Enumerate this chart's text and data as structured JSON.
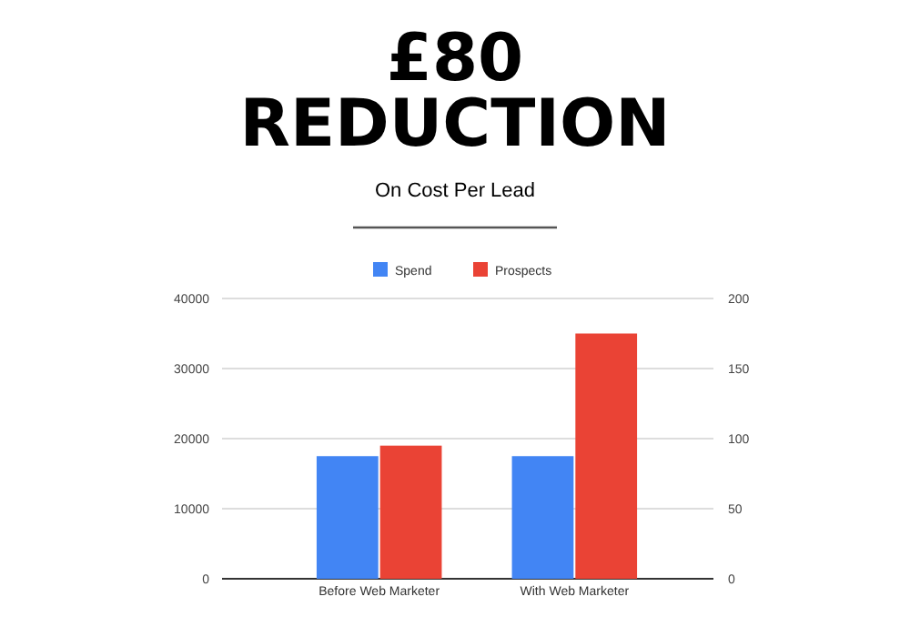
{
  "chart_data": {
    "type": "bar",
    "title": "£80\nREDUCTION",
    "subtitle": "On Cost Per Lead",
    "categories": [
      "Before Web Marketer",
      "With Web Marketer"
    ],
    "series": [
      {
        "name": "Spend",
        "color": "#4285f4",
        "values": [
          17500,
          17500
        ]
      },
      {
        "name": "Prospects",
        "color": "#ea4335",
        "values": [
          95,
          175
        ],
        "axis": "y2"
      }
    ],
    "ylim": [
      0,
      40000
    ],
    "yticks": [
      0,
      10000,
      20000,
      30000,
      40000
    ],
    "y2lim": [
      0,
      200
    ],
    "y2ticks": [
      0,
      50,
      100,
      150,
      200
    ],
    "grid": "y",
    "legend": "top"
  }
}
